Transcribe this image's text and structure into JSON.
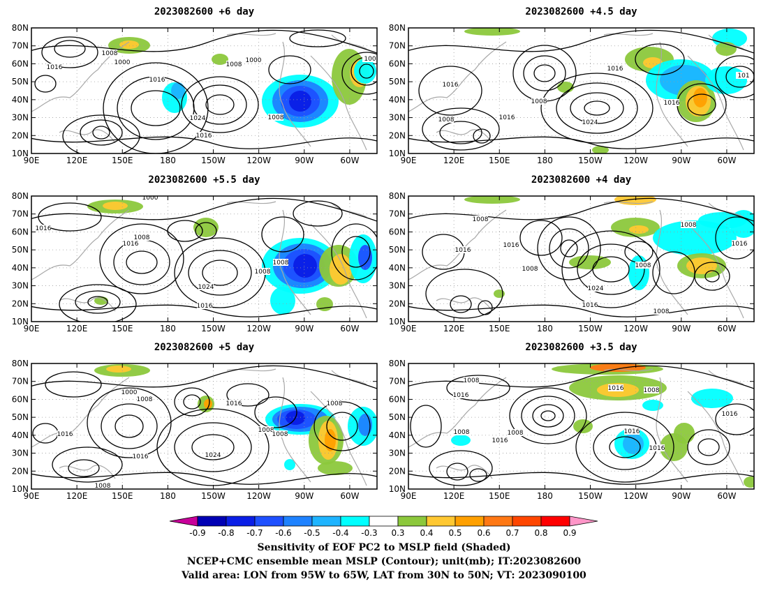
{
  "panels": [
    {
      "title": "2023082600  +6 day",
      "contour_labels": [
        "1008",
        "1000",
        "1016",
        "1008",
        "1000",
        "1016",
        "1024",
        "1008",
        "1016",
        "100"
      ]
    },
    {
      "title": "2023082600  +4.5  day",
      "contour_labels": [
        "1016",
        "1016",
        "1008",
        "1008",
        "1016",
        "1024",
        "1016",
        "101"
      ]
    },
    {
      "title": "2023082600  +5.5  day",
      "contour_labels": [
        "1000",
        "1016",
        "1008",
        "1016",
        "1008",
        "1024",
        "1008",
        "1016"
      ]
    },
    {
      "title": "2023082600  +4  day",
      "contour_labels": [
        "1008",
        "1008",
        "1016",
        "1016",
        "1008",
        "1024",
        "1008",
        "1016",
        "1016",
        "1008"
      ]
    },
    {
      "title": "2023082600  +5  day",
      "contour_labels": [
        "1000",
        "1008",
        "1016",
        "1016",
        "1016",
        "1008",
        "1008",
        "1024",
        "1008",
        "1008"
      ]
    },
    {
      "title": "2023082600  +3.5  day",
      "contour_labels": [
        "1008",
        "1016",
        "1016",
        "1008",
        "1008",
        "1008",
        "1016",
        "1016",
        "1016",
        "1016"
      ]
    }
  ],
  "axes": {
    "lon_ticks": [
      "90E",
      "120E",
      "150E",
      "180",
      "150W",
      "120W",
      "90W",
      "60W"
    ],
    "lat_ticks": [
      "80N",
      "70N",
      "60N",
      "50N",
      "40N",
      "30N",
      "20N",
      "10N"
    ]
  },
  "colorbar": {
    "levels": [
      "-0.9",
      "-0.8",
      "-0.7",
      "-0.6",
      "-0.5",
      "-0.4",
      "-0.3",
      "0.3",
      "0.4",
      "0.5",
      "0.6",
      "0.7",
      "0.8",
      "0.9"
    ],
    "colors": [
      "#c8009a",
      "#0000b4",
      "#0a1ee6",
      "#1e50ff",
      "#1e82ff",
      "#1eb4ff",
      "#00ffff",
      "#ffffff",
      "#8cc83c",
      "#ffc832",
      "#ffa000",
      "#ff7814",
      "#ff4600",
      "#ff0000",
      "#ff96c8"
    ]
  },
  "caption": {
    "line1": "Sensitivity of EOF PC2 to MSLP field (Shaded)",
    "line2": "NCEP+CMC ensemble mean MSLP (Contour); unit(mb); IT:2023082600",
    "line3": "Valid area: LON from 95W to 65W, LAT from 30N to 50N; VT: 2023090100"
  }
}
